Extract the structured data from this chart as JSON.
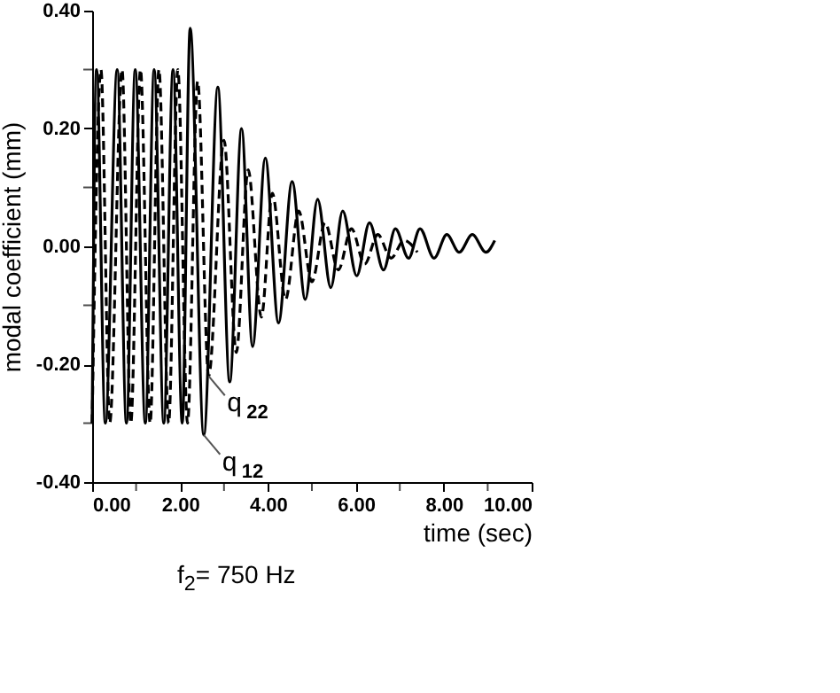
{
  "chart_data": {
    "type": "line",
    "xlabel": "time (sec)",
    "ylabel": "modal coefficient (mm)",
    "xlim": [
      0,
      10
    ],
    "ylim": [
      -0.4,
      0.4
    ],
    "xticks": [
      {
        "value": 0,
        "label": "0.00"
      },
      {
        "value": 1,
        "label": null
      },
      {
        "value": 2,
        "label": "2.00"
      },
      {
        "value": 3,
        "label": null
      },
      {
        "value": 4,
        "label": "4.00"
      },
      {
        "value": 5,
        "label": null
      },
      {
        "value": 6,
        "label": "6.00"
      },
      {
        "value": 7,
        "label": null
      },
      {
        "value": 8,
        "label": "8.00"
      },
      {
        "value": 9,
        "label": null
      },
      {
        "value": 10,
        "label": "10.00"
      }
    ],
    "yticks": [
      {
        "value": -0.4,
        "label": "-0.40"
      },
      {
        "value": -0.3,
        "label": null
      },
      {
        "value": -0.2,
        "label": "-0.20"
      },
      {
        "value": -0.1,
        "label": null
      },
      {
        "value": 0,
        "label": "0.00"
      },
      {
        "value": 0.1,
        "label": null
      },
      {
        "value": 0.2,
        "label": "0.20"
      },
      {
        "value": 0.3,
        "label": null
      },
      {
        "value": 0.4,
        "label": "0.40"
      }
    ],
    "grid": false,
    "marker": "none",
    "series": [
      {
        "color": "#000000",
        "line_style": "solid",
        "x": [
          0,
          0.1,
          0.3,
          0.57,
          0.78,
          0.98,
          1.21,
          1.41,
          1.63,
          1.84,
          2.05,
          2.23,
          2.54,
          2.86,
          3.13,
          3.4,
          3.65,
          3.94,
          4.24,
          4.55,
          4.85,
          5.13,
          5.43,
          5.7,
          6.02,
          6.31,
          6.63,
          6.9,
          7.2,
          7.46,
          7.78,
          8.07,
          8.35,
          8.65,
          8.96,
          9.16
        ],
        "values": [
          -0.3,
          0.3,
          -0.3,
          0.3,
          -0.3,
          0.3,
          -0.3,
          0.3,
          -0.3,
          0.3,
          -0.3,
          0.37,
          -0.32,
          0.27,
          -0.23,
          0.2,
          -0.17,
          0.15,
          -0.13,
          0.11,
          -0.09,
          0.08,
          -0.07,
          0.06,
          -0.05,
          0.04,
          -0.04,
          0.03,
          -0.02,
          0.03,
          -0.02,
          0.02,
          -0.01,
          0.02,
          -0.01,
          0.01
        ]
      },
      {
        "color": "#000000",
        "line_style": "dashed",
        "x": [
          0,
          0.2,
          0.4,
          0.68,
          0.88,
          1.1,
          1.32,
          1.52,
          1.74,
          1.95,
          2.17,
          2.4,
          2.65,
          3.0,
          3.28,
          3.55,
          3.85,
          4.1,
          4.4,
          4.7,
          5.0,
          5.3,
          5.6,
          5.9,
          6.2,
          6.5,
          6.8,
          7.1,
          7.4
        ],
        "values": [
          -0.3,
          0.3,
          -0.3,
          0.3,
          -0.3,
          0.3,
          -0.3,
          0.3,
          -0.3,
          0.3,
          -0.3,
          0.28,
          -0.22,
          0.18,
          -0.18,
          0.13,
          -0.12,
          0.09,
          -0.09,
          0.06,
          -0.06,
          0.04,
          -0.04,
          0.03,
          -0.03,
          0.02,
          -0.02,
          0.01,
          -0.01
        ]
      }
    ],
    "annotations": [
      {
        "text": "q$_{22}$",
        "x": 2.65,
        "y": -0.22
      },
      {
        "text": "q$_{12}$",
        "x": 2.54,
        "y": -0.32
      },
      "f$_{2}$= 750 Hz"
    ]
  }
}
